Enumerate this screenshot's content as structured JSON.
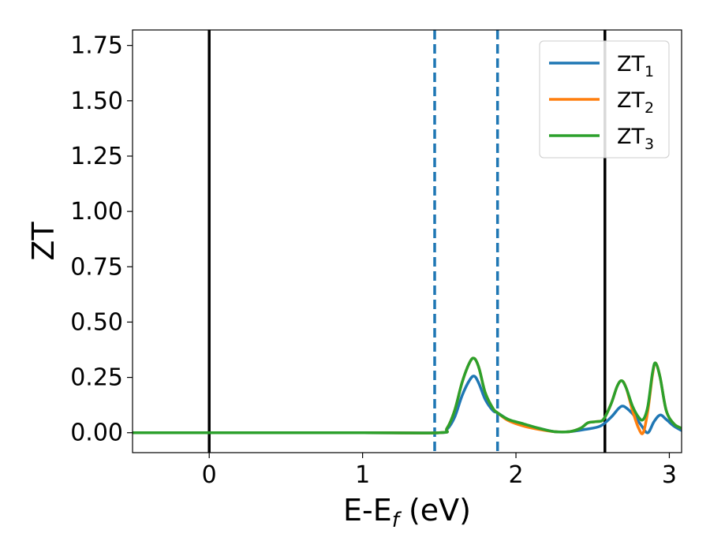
{
  "chart_data": {
    "type": "line",
    "xlabel_main": "E-E",
    "xlabel_sub": "f",
    "xlabel_unit": " (eV)",
    "ylabel": "ZT",
    "xlim": [
      -0.5,
      3.08
    ],
    "ylim": [
      -0.09,
      1.82
    ],
    "x_ticks": [
      0,
      1,
      2,
      3
    ],
    "x_tick_labels": [
      "0",
      "1",
      "2",
      "3"
    ],
    "y_ticks": [
      0.0,
      0.25,
      0.5,
      0.75,
      1.0,
      1.25,
      1.5,
      1.75
    ],
    "y_tick_labels": [
      "0.00",
      "0.25",
      "0.50",
      "0.75",
      "1.00",
      "1.25",
      "1.50",
      "1.75"
    ],
    "grid": false,
    "legend_position": "top-right",
    "vertical_lines": [
      {
        "x": 0.0,
        "style": "solid",
        "color": "#000000"
      },
      {
        "x": 2.58,
        "style": "solid",
        "color": "#000000"
      },
      {
        "x": 1.47,
        "style": "dashed",
        "color": "#1f77b4"
      },
      {
        "x": 1.88,
        "style": "dashed",
        "color": "#1f77b4"
      }
    ],
    "series": [
      {
        "name": "ZT",
        "sub": "1",
        "color": "#1f77b4",
        "x": [
          -0.5,
          1.0,
          1.5,
          1.55,
          1.6,
          1.65,
          1.7,
          1.73,
          1.76,
          1.8,
          1.85,
          1.88,
          1.95,
          2.05,
          2.15,
          2.25,
          2.35,
          2.45,
          2.55,
          2.62,
          2.67,
          2.7,
          2.74,
          2.78,
          2.82,
          2.86,
          2.9,
          2.94,
          2.98,
          3.03,
          3.08
        ],
        "y": [
          0.0,
          0.0,
          0.0,
          0.015,
          0.07,
          0.17,
          0.24,
          0.255,
          0.22,
          0.15,
          0.1,
          0.09,
          0.06,
          0.035,
          0.02,
          0.005,
          0.005,
          0.015,
          0.03,
          0.07,
          0.11,
          0.12,
          0.1,
          0.07,
          0.03,
          0.0,
          0.05,
          0.08,
          0.06,
          0.03,
          0.01
        ]
      },
      {
        "name": "ZT",
        "sub": "2",
        "color": "#ff7f0e",
        "x": [
          -0.5,
          1.0,
          1.5,
          1.55,
          1.6,
          1.65,
          1.7,
          1.73,
          1.76,
          1.8,
          1.85,
          1.88,
          1.95,
          2.05,
          2.15,
          2.25,
          2.35,
          2.42,
          2.47,
          2.52,
          2.57,
          2.62,
          2.66,
          2.69,
          2.72,
          2.76,
          2.8,
          2.83,
          2.86,
          2.89,
          2.91,
          2.94,
          2.98,
          3.03,
          3.08
        ],
        "y": [
          0.0,
          0.0,
          0.0,
          0.02,
          0.1,
          0.23,
          0.32,
          0.335,
          0.29,
          0.18,
          0.11,
          0.09,
          0.055,
          0.03,
          0.015,
          0.005,
          0.005,
          0.02,
          0.045,
          0.05,
          0.06,
          0.13,
          0.21,
          0.235,
          0.2,
          0.1,
          0.02,
          0.0,
          0.1,
          0.26,
          0.315,
          0.25,
          0.1,
          0.04,
          0.02
        ]
      },
      {
        "name": "ZT",
        "sub": "3",
        "color": "#2ca02c",
        "x": [
          -0.5,
          1.0,
          1.5,
          1.55,
          1.6,
          1.65,
          1.7,
          1.73,
          1.76,
          1.8,
          1.85,
          1.88,
          1.95,
          2.05,
          2.15,
          2.25,
          2.35,
          2.42,
          2.47,
          2.52,
          2.57,
          2.62,
          2.66,
          2.69,
          2.72,
          2.76,
          2.8,
          2.83,
          2.86,
          2.89,
          2.91,
          2.94,
          2.98,
          3.03,
          3.08
        ],
        "y": [
          0.0,
          0.0,
          0.0,
          0.02,
          0.1,
          0.23,
          0.32,
          0.335,
          0.29,
          0.18,
          0.11,
          0.09,
          0.06,
          0.04,
          0.02,
          0.005,
          0.005,
          0.02,
          0.045,
          0.05,
          0.06,
          0.13,
          0.21,
          0.235,
          0.2,
          0.12,
          0.07,
          0.06,
          0.12,
          0.27,
          0.315,
          0.25,
          0.1,
          0.04,
          0.02
        ]
      }
    ]
  }
}
